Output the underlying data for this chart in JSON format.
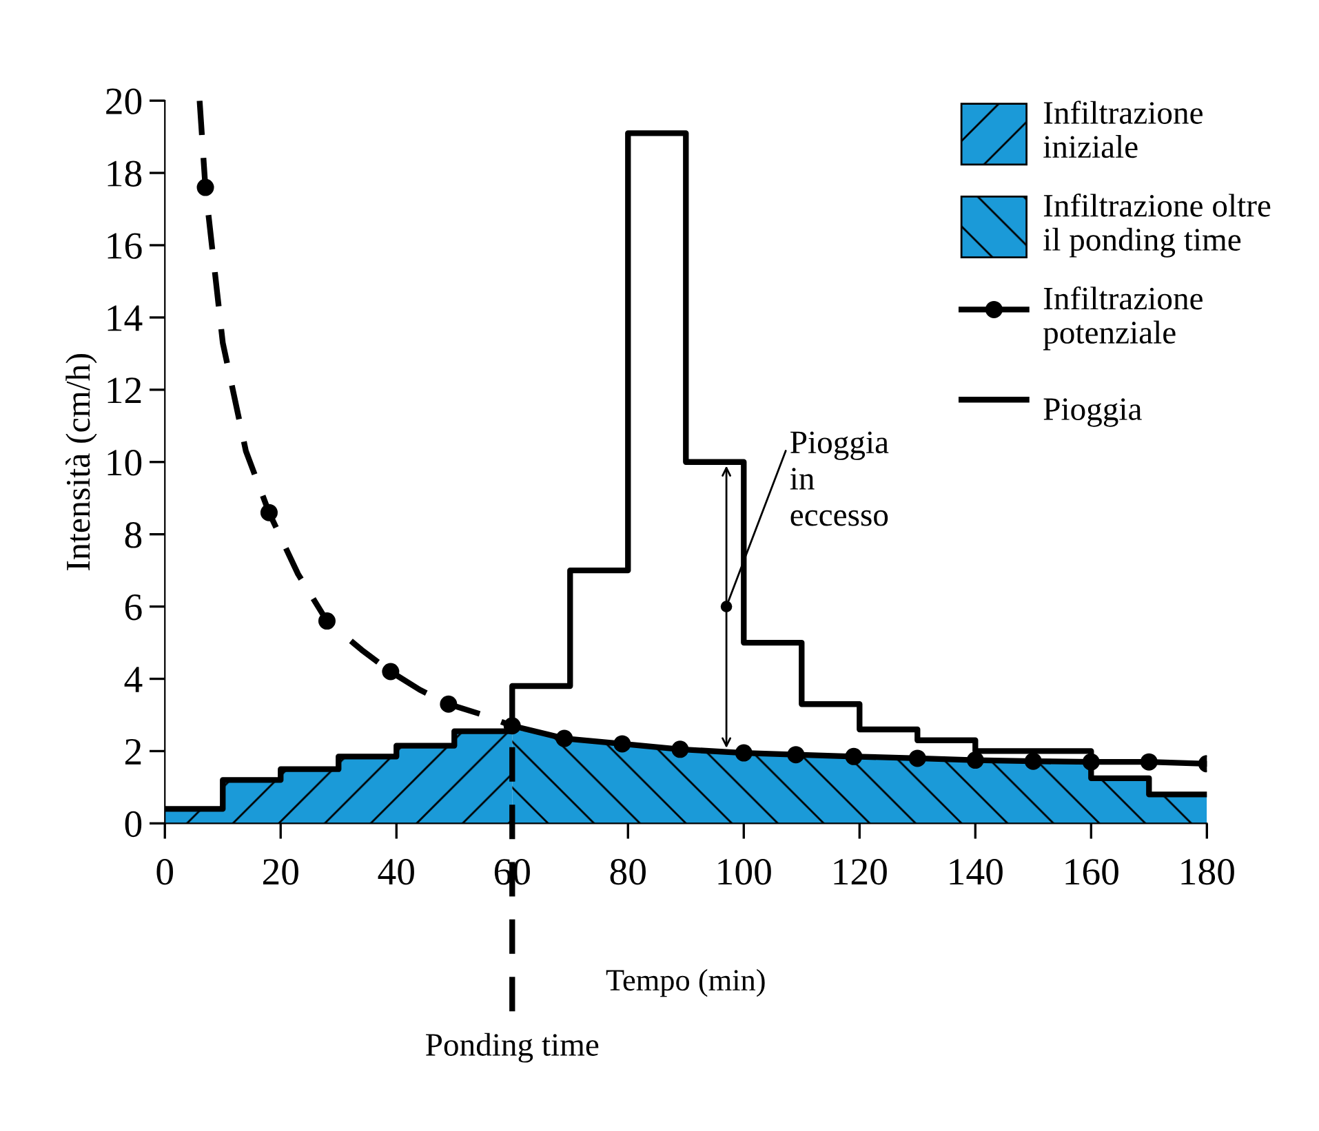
{
  "chart_data": {
    "type": "line",
    "xlabel": "Tempo (min)",
    "ylabel": "Intensità (cm/h)",
    "xlim": [
      0,
      180
    ],
    "xticks": [
      0,
      20,
      40,
      60,
      80,
      100,
      120,
      140,
      160,
      180
    ],
    "ylim": [
      0,
      20
    ],
    "yticks": [
      0,
      2,
      4,
      6,
      8,
      10,
      12,
      14,
      16,
      18,
      20
    ],
    "grid": false,
    "legend": "top right",
    "series": [
      {
        "name": "Infiltrazione\niniziale",
        "type": "area",
        "color": "#1b9ad8",
        "x": [
          0,
          10,
          10,
          20,
          20,
          30,
          30,
          40,
          40,
          50,
          50,
          60
        ],
        "values": [
          0.4,
          0.4,
          1.2,
          1.2,
          1.5,
          1.5,
          1.85,
          1.85,
          2.15,
          2.15,
          2.55,
          2.55
        ]
      },
      {
        "name": "Infiltrazione oltre\nil ponding time",
        "type": "area",
        "color": "#1b9ad8",
        "x": [
          60,
          70,
          80,
          90,
          100,
          110,
          120,
          130,
          140,
          150,
          160,
          160,
          170,
          170,
          180
        ],
        "values": [
          2.6,
          2.35,
          2.2,
          2.05,
          1.95,
          1.9,
          1.85,
          1.8,
          1.75,
          1.72,
          1.7,
          1.25,
          1.25,
          0.8,
          0.8
        ]
      },
      {
        "color": "#000000",
        "line_style": "dashed",
        "marker": "none",
        "x": [
          6,
          7,
          10,
          14,
          18,
          23,
          28,
          34,
          39,
          44,
          49,
          55,
          60
        ],
        "values": [
          20,
          17.6,
          13.3,
          10.3,
          8.6,
          6.9,
          5.6,
          4.8,
          4.2,
          3.7,
          3.3,
          3.0,
          2.7
        ]
      },
      {
        "type": "scatter",
        "color": "#000000",
        "marker": "circle",
        "x": [
          7,
          18,
          28,
          39,
          49
        ],
        "values": [
          17.6,
          8.6,
          5.6,
          4.2,
          3.3
        ]
      },
      {
        "name": "Infiltrazione\npotenziale",
        "color": "#000000",
        "line_style": "solid",
        "marker": "circle",
        "x": [
          60,
          69,
          79,
          89,
          100,
          109,
          119,
          130,
          140,
          150,
          160,
          170,
          180
        ],
        "values": [
          2.7,
          2.35,
          2.2,
          2.05,
          1.95,
          1.9,
          1.85,
          1.8,
          1.75,
          1.72,
          1.7,
          1.7,
          1.65
        ]
      },
      {
        "name": "Pioggia",
        "type": "step",
        "color": "#000000",
        "marker": "none",
        "x": [
          0,
          10,
          20,
          30,
          40,
          50,
          60,
          70,
          80,
          90,
          100,
          110,
          120,
          130,
          140,
          150,
          160,
          170,
          180
        ],
        "values": [
          0.4,
          1.2,
          1.5,
          1.85,
          2.15,
          2.55,
          3.8,
          7.0,
          19.1,
          10.0,
          5.0,
          3.3,
          2.6,
          2.3,
          2.0,
          2.0,
          1.25,
          0.8,
          0.8
        ]
      }
    ],
    "ref_lines": [
      {
        "axis": "x",
        "value": 60,
        "label": "Ponding time",
        "line_style": "dashed",
        "color": "#000000"
      }
    ],
    "annotations": [
      {
        "text": "Pioggia\nin\neccesso",
        "x": 97,
        "y": 6
      }
    ]
  }
}
